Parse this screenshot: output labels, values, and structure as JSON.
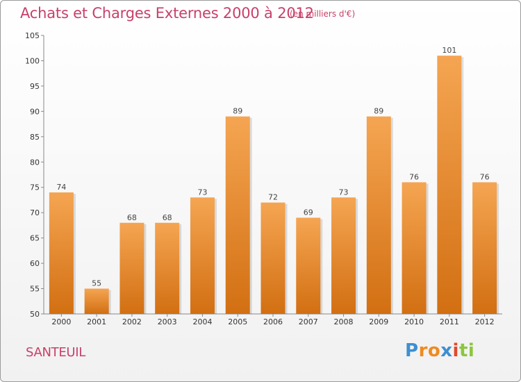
{
  "chart_data": {
    "type": "bar",
    "title": "Achats et Charges Externes 2000 à 2012",
    "subtitle": "(en milliers d'€)",
    "categories": [
      "2000",
      "2001",
      "2002",
      "2003",
      "2004",
      "2005",
      "2006",
      "2007",
      "2008",
      "2009",
      "2010",
      "2011",
      "2012"
    ],
    "values": [
      74,
      55,
      68,
      68,
      73,
      89,
      72,
      69,
      73,
      89,
      76,
      101,
      76
    ],
    "ylim": [
      50,
      105
    ],
    "yticks": [
      50,
      55,
      60,
      65,
      70,
      75,
      80,
      85,
      90,
      95,
      100,
      105
    ],
    "xlabel": "",
    "ylabel": "",
    "grid": false,
    "bar_color_top": "#f5a552",
    "bar_color_bottom": "#d26f12"
  },
  "footer": {
    "town": "SANTEUIL",
    "brand_parts": [
      "P",
      "ro",
      "x",
      "i",
      "ti"
    ]
  },
  "colors": {
    "title": "#c8406a",
    "axis": "#888888"
  }
}
